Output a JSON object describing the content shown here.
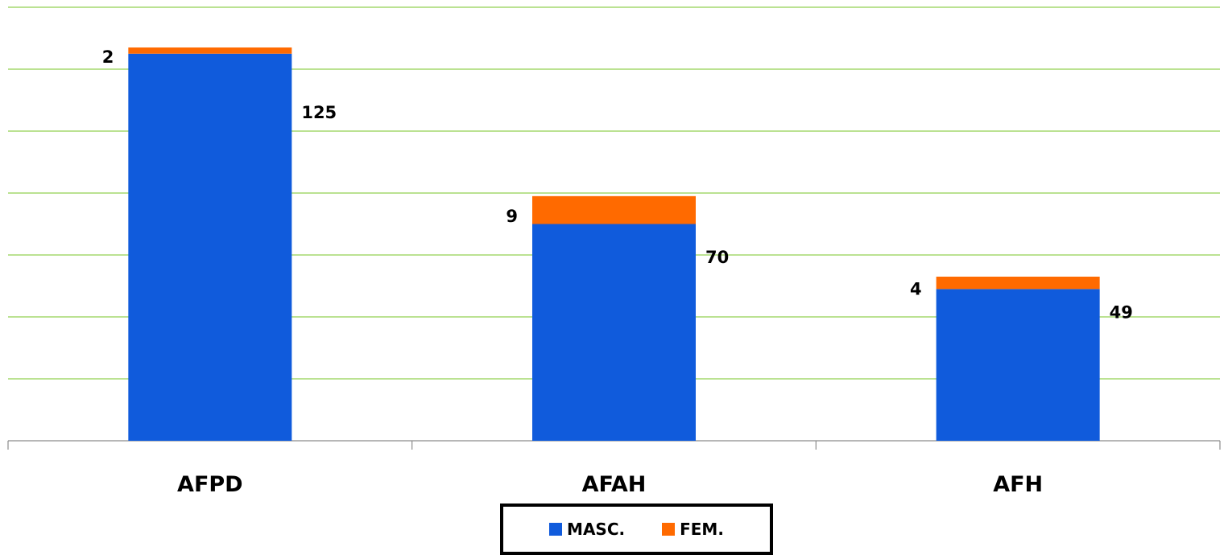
{
  "chart_data": {
    "type": "bar",
    "stacked": true,
    "categories": [
      "AFPD",
      "AFAH",
      "AFH"
    ],
    "series": [
      {
        "name": "MASC.",
        "color": "#105bdc",
        "values": [
          125,
          70,
          49
        ]
      },
      {
        "name": "FEM.",
        "color": "#ff6a00",
        "values": [
          2,
          9,
          4
        ]
      }
    ],
    "title": "",
    "xlabel": "",
    "ylabel": "",
    "ylim": [
      0,
      140
    ],
    "grid": true,
    "gridline_step": 20,
    "gridline_color": "#92d050",
    "legend_position": "bottom"
  }
}
